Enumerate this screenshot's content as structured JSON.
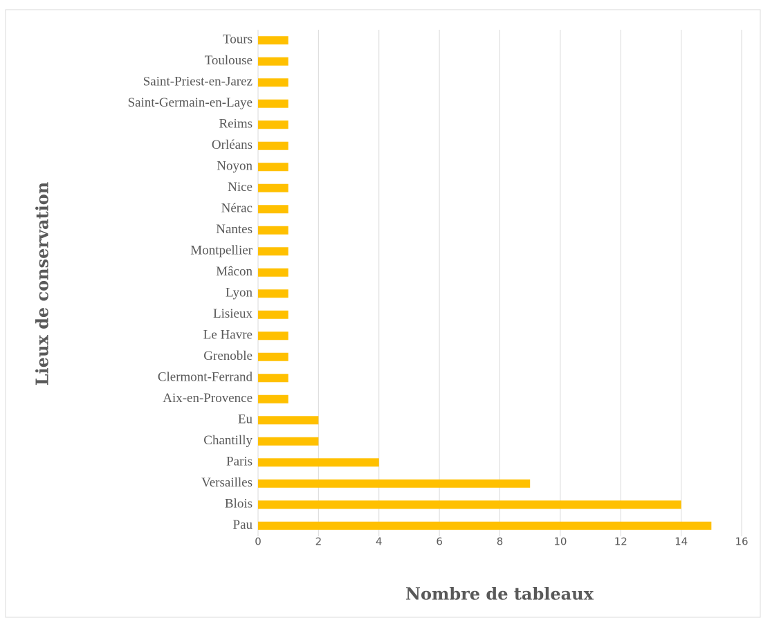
{
  "chart_data": {
    "type": "bar",
    "orientation": "horizontal",
    "xlabel": "Nombre de tableaux",
    "ylabel": "Lieux de conservation",
    "categories": [
      "Pau",
      "Blois",
      "Versailles",
      "Paris",
      "Chantilly",
      "Eu",
      "Aix-en-Provence",
      "Clermont-Ferrand",
      "Grenoble",
      "Le Havre",
      "Lisieux",
      "Lyon",
      "Mâcon",
      "Montpellier",
      "Nantes",
      "Nérac",
      "Nice",
      "Noyon",
      "Orléans",
      "Reims",
      "Saint-Germain-en-Laye",
      "Saint-Priest-en-Jarez",
      "Toulouse",
      "Tours"
    ],
    "values": [
      15,
      14,
      9,
      4,
      2,
      2,
      1,
      1,
      1,
      1,
      1,
      1,
      1,
      1,
      1,
      1,
      1,
      1,
      1,
      1,
      1,
      1,
      1,
      1
    ],
    "color": "#ffc000",
    "xlim": [
      0,
      16
    ],
    "xticks": [
      0,
      2,
      4,
      6,
      8,
      10,
      12,
      14,
      16
    ],
    "grid": true
  }
}
